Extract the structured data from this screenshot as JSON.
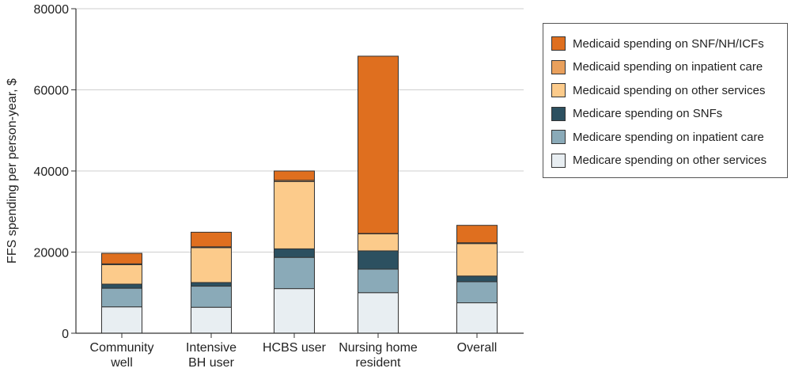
{
  "chart_data": {
    "type": "bar",
    "stacked": true,
    "title": "",
    "xlabel": "",
    "ylabel": "FFS spending per person-year, $",
    "ylim": [
      0,
      80000
    ],
    "yticks": [
      0,
      20000,
      40000,
      60000,
      80000
    ],
    "ytick_labels": [
      "0",
      "20000",
      "40000",
      "60000",
      "80000"
    ],
    "categories": [
      [
        "Community",
        "well"
      ],
      [
        "Intensive",
        "BH user"
      ],
      [
        "HCBS user"
      ],
      [
        "Nursing home",
        "resident"
      ],
      [
        "Overall"
      ]
    ],
    "series": [
      {
        "name": "Medicare spending on other services",
        "color": "#e8eef2",
        "values": [
          6500,
          6400,
          11000,
          10000,
          7500
        ]
      },
      {
        "name": "Medicare spending on inpatient care",
        "color": "#8aaab8",
        "values": [
          4600,
          5200,
          7700,
          5800,
          5200
        ]
      },
      {
        "name": "Medicare spending on SNFs",
        "color": "#2c5060",
        "values": [
          1000,
          900,
          2100,
          4500,
          1400
        ]
      },
      {
        "name": "Medicaid spending on other services",
        "color": "#fccb8b",
        "values": [
          4800,
          8600,
          16600,
          4200,
          8000
        ]
      },
      {
        "name": "Medicaid spending on inpatient care",
        "color": "#e9a05c",
        "values": [
          200,
          200,
          300,
          100,
          200
        ]
      },
      {
        "name": "Medicaid spending on SNF/NH/ICFs",
        "color": "#df6f1f",
        "values": [
          2600,
          3600,
          2300,
          43700,
          4300
        ]
      }
    ],
    "legend_position": "right",
    "legend_order": [
      "Medicaid spending on SNF/NH/ICFs",
      "Medicaid spending on inpatient care",
      "Medicaid spending on other services",
      "Medicare spending on SNFs",
      "Medicare spending on inpatient care",
      "Medicare spending on other services"
    ],
    "grid": true
  }
}
